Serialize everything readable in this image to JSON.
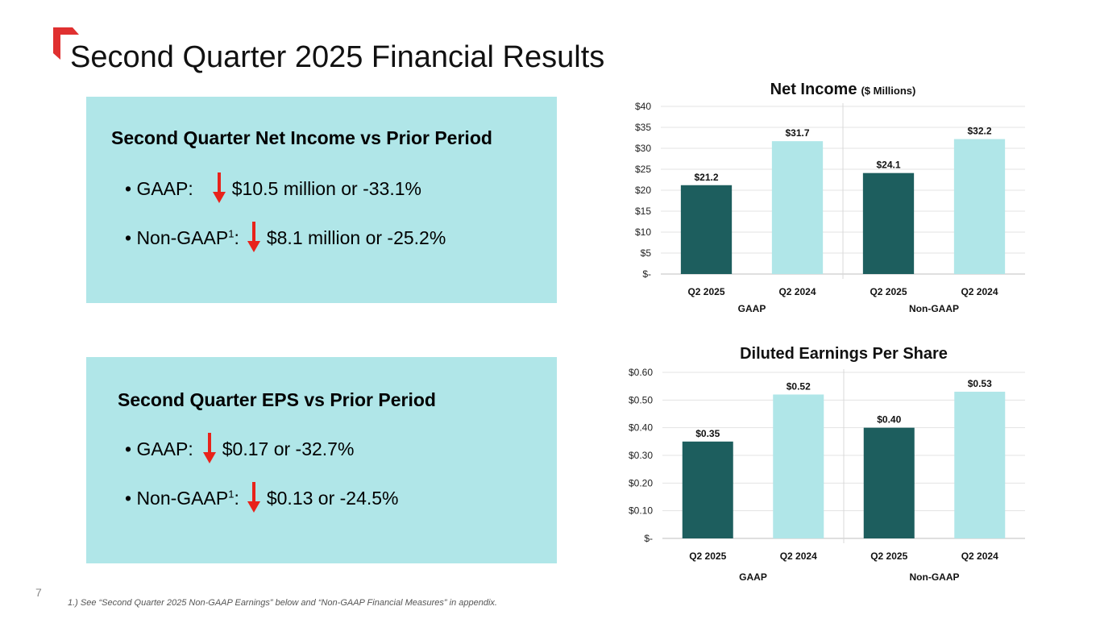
{
  "slide": {
    "title": "Second Quarter 2025 Financial Results",
    "page_number": "7",
    "footnote": "1.) See “Second Quarter 2025 Non-GAAP Earnings” below and “Non-GAAP Financial Measures” in appendix."
  },
  "net_income_panel": {
    "heading": "Second Quarter Net Income vs Prior Period",
    "gaap_label": "• GAAP:",
    "gaap_value": "$10.5 million or -33.1%",
    "nongaap_label": "• Non-GAAP",
    "nongaap_sup": "1",
    "nongaap_colon": ":",
    "nongaap_value": "$8.1 million or -25.2%"
  },
  "eps_panel": {
    "heading": "Second Quarter EPS vs Prior Period",
    "gaap_label": "• GAAP:",
    "gaap_value": "$0.17 or -32.7%",
    "nongaap_label": "• Non-GAAP",
    "nongaap_sup": "1",
    "nongaap_colon": ":",
    "nongaap_value": "$0.13 or -24.5%"
  },
  "colors": {
    "panel_bg": "#b0e6e8",
    "dark_bar": "#1d5e5e",
    "light_bar": "#b0e6e8",
    "arrow": "#e8231b",
    "accent": "#e03030"
  },
  "icons": {
    "corner": "red-corner-mark",
    "decrease": "down-arrow-icon"
  },
  "chart_data": [
    {
      "type": "bar",
      "title": "Net Income",
      "subtitle": "($ Millions)",
      "groups": [
        "GAAP",
        "Non-GAAP"
      ],
      "categories": [
        "Q2 2025",
        "Q2 2024",
        "Q2 2025",
        "Q2 2024"
      ],
      "values": [
        21.2,
        31.7,
        24.1,
        32.2
      ],
      "value_labels": [
        "$21.2",
        "$31.7",
        "$24.1",
        "$32.2"
      ],
      "ylim": [
        0,
        40
      ],
      "yticks": [
        0,
        5,
        10,
        15,
        20,
        25,
        30,
        35,
        40
      ],
      "ytick_labels": [
        "$-",
        "$5",
        "$10",
        "$15",
        "$20",
        "$25",
        "$30",
        "$35",
        "$40"
      ],
      "grid": true,
      "legend": "none"
    },
    {
      "type": "bar",
      "title": "Diluted Earnings Per Share",
      "subtitle": "",
      "groups": [
        "GAAP",
        "Non-GAAP"
      ],
      "categories": [
        "Q2 2025",
        "Q2 2024",
        "Q2 2025",
        "Q2 2024"
      ],
      "values": [
        0.35,
        0.52,
        0.4,
        0.53
      ],
      "value_labels": [
        "$0.35",
        "$0.52",
        "$0.40",
        "$0.53"
      ],
      "ylim": [
        0,
        0.6
      ],
      "yticks": [
        0,
        0.1,
        0.2,
        0.3,
        0.4,
        0.5,
        0.6
      ],
      "ytick_labels": [
        "$-",
        "$0.10",
        "$0.20",
        "$0.30",
        "$0.40",
        "$0.50",
        "$0.60"
      ],
      "grid": true,
      "legend": "none"
    }
  ]
}
